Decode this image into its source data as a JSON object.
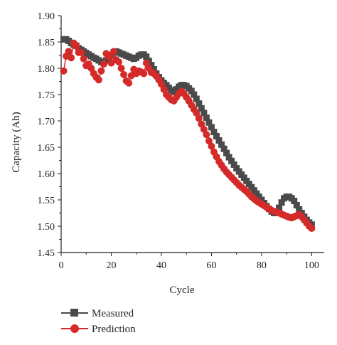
{
  "chart_data": {
    "type": "scatter",
    "xlabel": "Cycle",
    "ylabel": "Capacity (Ah)",
    "xlim": [
      0,
      105
    ],
    "ylim": [
      1.45,
      1.9
    ],
    "xticks": [
      "0",
      "20",
      "40",
      "60",
      "80",
      "100"
    ],
    "yticks": [
      "1.45",
      "1.50",
      "1.55",
      "1.60",
      "1.65",
      "1.70",
      "1.75",
      "1.80",
      "1.85",
      "1.90"
    ],
    "legend_position": "bottom-left",
    "grid": false,
    "series": [
      {
        "name": "Measured",
        "marker": "square",
        "color": "#4a4a4a",
        "x": [
          1,
          2,
          3,
          4,
          5,
          6,
          7,
          8,
          9,
          10,
          11,
          12,
          13,
          14,
          15,
          16,
          17,
          18,
          19,
          20,
          21,
          22,
          23,
          24,
          25,
          26,
          27,
          28,
          29,
          30,
          31,
          32,
          33,
          34,
          35,
          36,
          37,
          38,
          39,
          40,
          41,
          42,
          43,
          44,
          45,
          46,
          47,
          48,
          49,
          50,
          51,
          52,
          53,
          54,
          55,
          56,
          57,
          58,
          59,
          60,
          61,
          62,
          63,
          64,
          65,
          66,
          67,
          68,
          69,
          70,
          71,
          72,
          73,
          74,
          75,
          76,
          77,
          78,
          79,
          80,
          81,
          82,
          83,
          84,
          85,
          86,
          87,
          88,
          89,
          90,
          91,
          92,
          93,
          94,
          95,
          96,
          97,
          98,
          99,
          100
        ],
        "y": [
          1.855,
          1.855,
          1.852,
          1.848,
          1.845,
          1.843,
          1.838,
          1.835,
          1.832,
          1.829,
          1.826,
          1.823,
          1.82,
          1.818,
          1.815,
          1.812,
          1.81,
          1.815,
          1.82,
          1.825,
          1.83,
          1.832,
          1.83,
          1.828,
          1.826,
          1.824,
          1.822,
          1.82,
          1.818,
          1.82,
          1.824,
          1.826,
          1.826,
          1.822,
          1.814,
          1.806,
          1.798,
          1.79,
          1.783,
          1.777,
          1.772,
          1.768,
          1.763,
          1.758,
          1.755,
          1.76,
          1.765,
          1.768,
          1.768,
          1.766,
          1.762,
          1.757,
          1.75,
          1.742,
          1.733,
          1.724,
          1.715,
          1.706,
          1.697,
          1.688,
          1.679,
          1.671,
          1.663,
          1.655,
          1.647,
          1.639,
          1.631,
          1.624,
          1.617,
          1.61,
          1.604,
          1.598,
          1.592,
          1.586,
          1.58,
          1.574,
          1.568,
          1.562,
          1.556,
          1.55,
          1.544,
          1.538,
          1.533,
          1.528,
          1.525,
          1.527,
          1.535,
          1.545,
          1.553,
          1.556,
          1.556,
          1.553,
          1.548,
          1.54,
          1.532,
          1.525,
          1.518,
          1.512,
          1.507,
          1.503
        ]
      },
      {
        "name": "Prediction",
        "marker": "circle",
        "color": "#d42a2a",
        "x": [
          1,
          2,
          3,
          4,
          5,
          6,
          7,
          8,
          9,
          10,
          11,
          12,
          13,
          14,
          15,
          16,
          17,
          18,
          19,
          20,
          21,
          22,
          23,
          24,
          25,
          26,
          27,
          28,
          29,
          30,
          31,
          32,
          33,
          34,
          35,
          36,
          37,
          38,
          39,
          40,
          41,
          42,
          43,
          44,
          45,
          46,
          47,
          48,
          49,
          50,
          51,
          52,
          53,
          54,
          55,
          56,
          57,
          58,
          59,
          60,
          61,
          62,
          63,
          64,
          65,
          66,
          67,
          68,
          69,
          70,
          71,
          72,
          73,
          74,
          75,
          76,
          77,
          78,
          79,
          80,
          81,
          82,
          83,
          84,
          85,
          86,
          87,
          88,
          89,
          90,
          91,
          92,
          93,
          94,
          95,
          96,
          97,
          98,
          99,
          100
        ],
        "y": [
          1.795,
          1.823,
          1.832,
          1.82,
          1.848,
          1.842,
          1.83,
          1.83,
          1.818,
          1.805,
          1.808,
          1.8,
          1.79,
          1.783,
          1.778,
          1.795,
          1.808,
          1.828,
          1.823,
          1.81,
          1.832,
          1.816,
          1.812,
          1.8,
          1.788,
          1.776,
          1.772,
          1.786,
          1.798,
          1.79,
          1.795,
          1.793,
          1.79,
          1.81,
          1.8,
          1.792,
          1.79,
          1.785,
          1.778,
          1.77,
          1.76,
          1.75,
          1.745,
          1.74,
          1.738,
          1.745,
          1.752,
          1.756,
          1.752,
          1.745,
          1.738,
          1.73,
          1.722,
          1.715,
          1.705,
          1.694,
          1.684,
          1.674,
          1.662,
          1.652,
          1.641,
          1.632,
          1.623,
          1.616,
          1.609,
          1.603,
          1.598,
          1.593,
          1.588,
          1.583,
          1.578,
          1.574,
          1.57,
          1.566,
          1.561,
          1.556,
          1.552,
          1.548,
          1.545,
          1.542,
          1.539,
          1.536,
          1.533,
          1.53,
          1.528,
          1.527,
          1.525,
          1.523,
          1.521,
          1.519,
          1.517,
          1.516,
          1.518,
          1.52,
          1.522,
          1.518,
          1.512,
          1.506,
          1.5,
          1.496
        ]
      }
    ]
  }
}
